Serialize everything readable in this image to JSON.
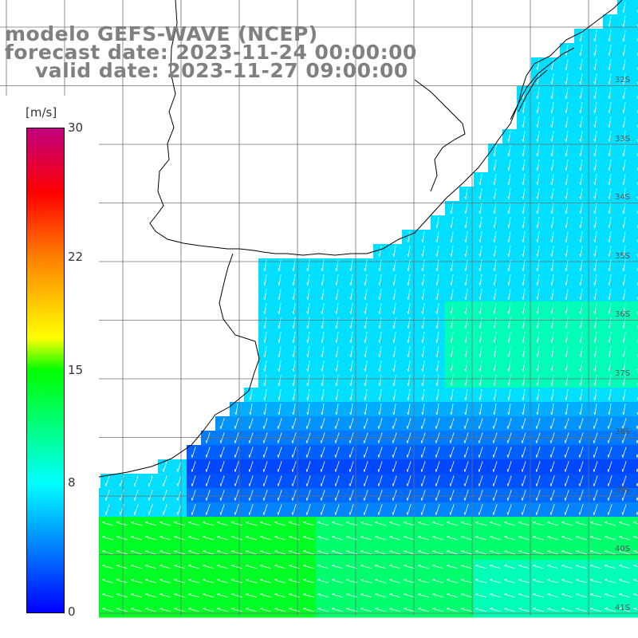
{
  "title": {
    "model": "modelo GEFS-WAVE (NCEP)",
    "forecast": "forecast date: 2023-11-24 00:00:00",
    "valid": "valid date: 2023-11-27 09:00:00"
  },
  "colorbar": {
    "unit": "[m/s]",
    "min": 0,
    "max": 30,
    "ticks": [
      {
        "value": 30,
        "label": "30"
      },
      {
        "value": 22,
        "label": "22"
      },
      {
        "value": 15,
        "label": "15"
      },
      {
        "value": 8,
        "label": "8"
      },
      {
        "value": 0,
        "label": "0"
      }
    ],
    "stops": [
      {
        "value": 0,
        "color": "#0000ff"
      },
      {
        "value": 8,
        "color": "#00ffff"
      },
      {
        "value": 15,
        "color": "#00ff00"
      },
      {
        "value": 17,
        "color": "#ffff00"
      },
      {
        "value": 22,
        "color": "#ff8000"
      },
      {
        "value": 26,
        "color": "#ff0000"
      },
      {
        "value": 30,
        "color": "#c0007f"
      }
    ]
  },
  "lat_labels": [
    "32S",
    "33S",
    "34S",
    "35S",
    "36S",
    "37S",
    "38S",
    "39S",
    "40S",
    "41S"
  ],
  "colors": {
    "land": "#ffffff",
    "coast": "#000000",
    "grid": "#707070",
    "arrow": "#ffffff"
  }
}
